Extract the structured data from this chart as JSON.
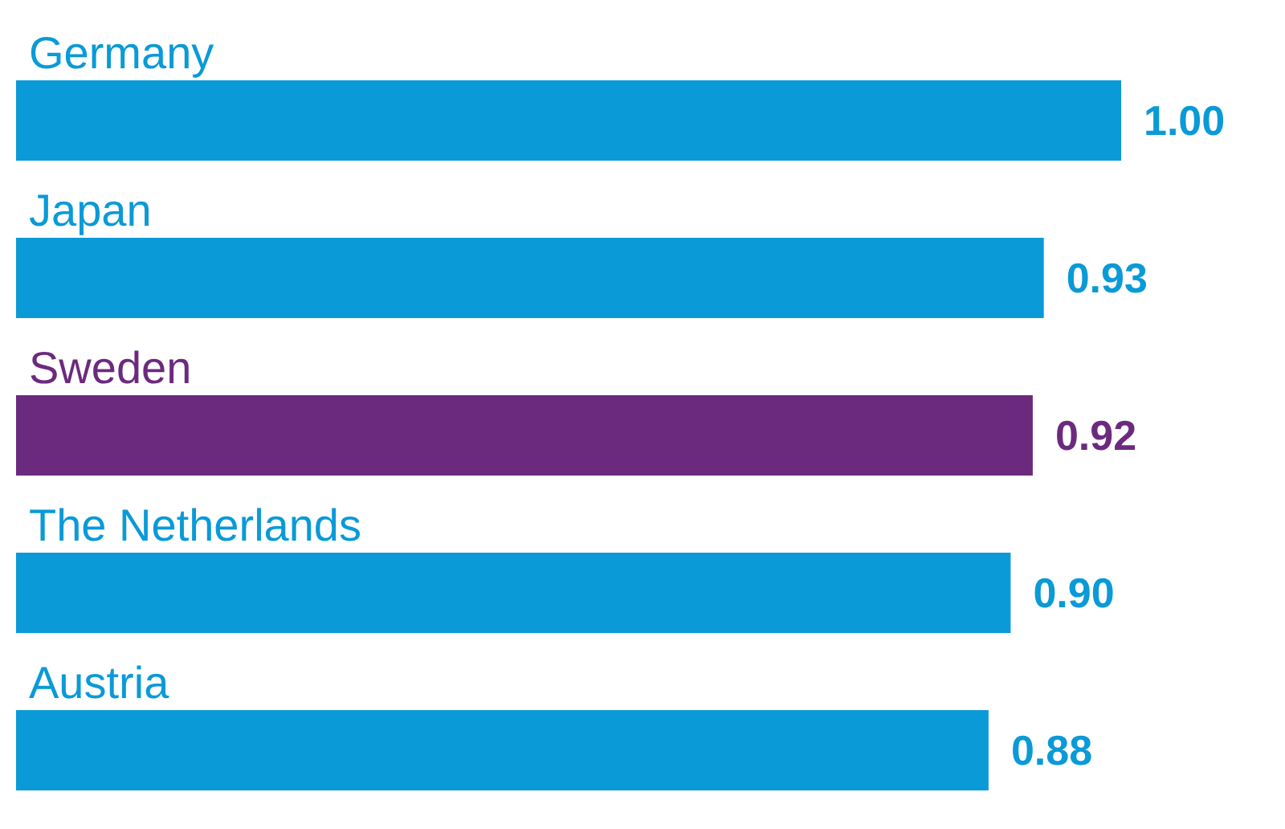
{
  "chart_data": {
    "type": "bar",
    "orientation": "horizontal",
    "categories": [
      "Germany",
      "Japan",
      "Sweden",
      "The Netherlands",
      "Austria"
    ],
    "values": [
      1.0,
      0.93,
      0.92,
      0.9,
      0.88
    ],
    "value_labels": [
      "1.00",
      "0.93",
      "0.92",
      "0.90",
      "0.88"
    ],
    "colors": [
      "#0a9ad7",
      "#0a9ad7",
      "#6c2a7f",
      "#0a9ad7",
      "#0a9ad7"
    ]
  }
}
